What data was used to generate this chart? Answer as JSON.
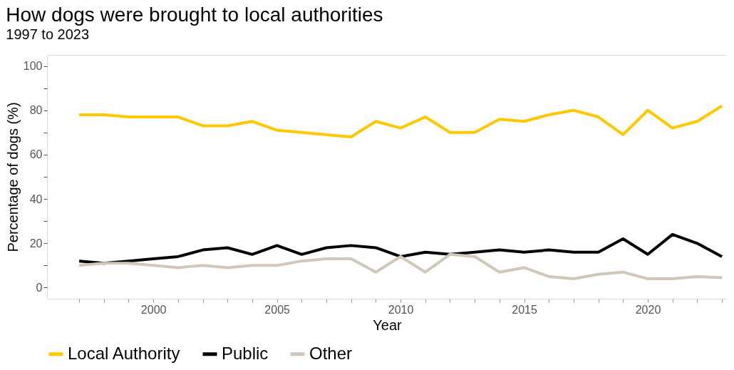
{
  "chart_data": {
    "type": "line",
    "title": "How dogs were brought to local authorities",
    "subtitle": "1997 to 2023",
    "xlabel": "Year",
    "ylabel": "Percentage of dogs (%)",
    "x": [
      1997,
      1998,
      1999,
      2000,
      2001,
      2002,
      2003,
      2004,
      2005,
      2006,
      2007,
      2008,
      2009,
      2010,
      2011,
      2012,
      2013,
      2014,
      2015,
      2016,
      2017,
      2018,
      2019,
      2020,
      2021,
      2022,
      2023
    ],
    "series": [
      {
        "name": "Local Authority",
        "color": "#ffc800",
        "values": [
          78,
          78,
          77,
          77,
          77,
          73,
          73,
          75,
          71,
          70,
          69,
          68,
          75,
          72,
          77,
          70,
          70,
          76,
          75,
          78,
          80,
          77,
          69,
          80,
          72,
          75,
          82
        ]
      },
      {
        "name": "Public",
        "color": "#000000",
        "values": [
          12,
          11,
          12,
          13,
          14,
          17,
          18,
          15,
          19,
          15,
          18,
          19,
          18,
          14,
          16,
          15,
          16,
          17,
          16,
          17,
          16,
          16,
          22,
          15,
          24,
          20,
          14
        ]
      },
      {
        "name": "Other",
        "color": "#d0c7b8",
        "values": [
          10,
          11,
          11,
          10,
          9,
          10,
          9,
          10,
          10,
          12,
          13,
          13,
          7,
          14,
          7,
          15,
          14,
          7,
          9,
          5,
          4,
          6,
          7,
          4,
          4,
          5,
          4.5
        ]
      }
    ],
    "xlim": [
      1995.7,
      2023.2
    ],
    "ylim": [
      -5,
      105
    ],
    "xticks": [
      {
        "value": 1997,
        "label": null
      },
      {
        "value": 1998,
        "label": null
      },
      {
        "value": 1999,
        "label": null
      },
      2000,
      {
        "value": 2001,
        "label": null
      },
      {
        "value": 2002,
        "label": null
      },
      {
        "value": 2003,
        "label": null
      },
      {
        "value": 2004,
        "label": null
      },
      2005,
      {
        "value": 2006,
        "label": null
      },
      {
        "value": 2007,
        "label": null
      },
      {
        "value": 2008,
        "label": null
      },
      {
        "value": 2009,
        "label": null
      },
      2010,
      {
        "value": 2011,
        "label": null
      },
      {
        "value": 2012,
        "label": null
      },
      {
        "value": 2013,
        "label": null
      },
      {
        "value": 2014,
        "label": null
      },
      2015,
      {
        "value": 2016,
        "label": null
      },
      {
        "value": 2017,
        "label": null
      },
      {
        "value": 2018,
        "label": null
      },
      {
        "value": 2019,
        "label": null
      },
      2020,
      {
        "value": 2021,
        "label": null
      },
      {
        "value": 2022,
        "label": null
      },
      {
        "value": 2023,
        "label": null
      }
    ],
    "yticks": [
      0,
      {
        "value": 10,
        "label": null
      },
      20,
      {
        "value": 30,
        "label": null
      },
      40,
      {
        "value": 50,
        "label": null
      },
      60,
      {
        "value": 70,
        "label": null
      },
      80,
      {
        "value": 90,
        "label": null
      },
      100
    ],
    "grid": false,
    "legend": "bottom",
    "marker": "none",
    "line_style": "solid"
  }
}
